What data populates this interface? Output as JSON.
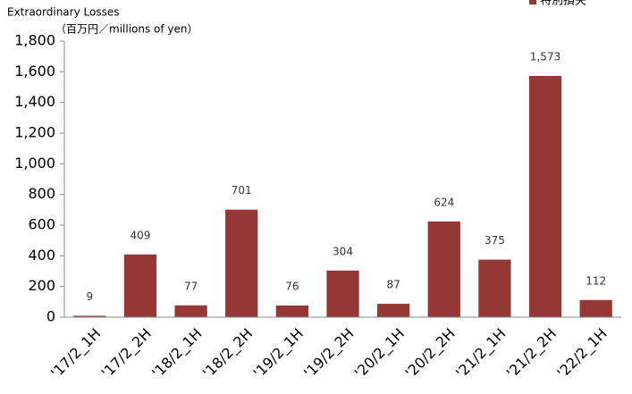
{
  "chart_data": {
    "type": "bar",
    "title": "Extraordinary Losses",
    "subtitle": "（百万円／millions of yen）",
    "legend": "特別損失",
    "legend_position": "top-right",
    "color": "#953735",
    "categories": [
      "'17/2_1H",
      "'17/2_2H",
      "'18/2_1H",
      "'18/2_2H",
      "'19/2_1H",
      "'19/2_2H",
      "'20/2_1H",
      "'20/2_2H",
      "'21/2_1H",
      "'21/2_2H",
      "'22/2_1H"
    ],
    "values": [
      9,
      409,
      77,
      701,
      76,
      304,
      87,
      624,
      375,
      1573,
      112
    ],
    "value_labels": [
      "9",
      "409",
      "77",
      "701",
      "76",
      "304",
      "87",
      "624",
      "375",
      "1,573",
      "112"
    ],
    "ylim": [
      0,
      1800
    ],
    "yticks": [
      0,
      200,
      400,
      600,
      800,
      {
        "value": 1000,
        "label": "1,000"
      },
      {
        "value": 1200,
        "label": "1,200"
      },
      {
        "value": 1400,
        "label": "1,400"
      },
      {
        "value": 1600,
        "label": "1,600"
      },
      {
        "value": 1800,
        "label": "1,800"
      }
    ],
    "grid": false
  }
}
